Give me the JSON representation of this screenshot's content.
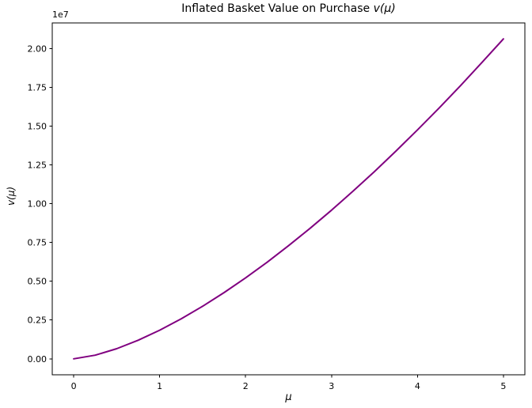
{
  "figure": {
    "title_prefix": "Inflated Basket Value on Purchase ",
    "title_math": "v(μ)",
    "xlabel": "μ",
    "ylabel": "v(μ)",
    "offset_text": "1e7",
    "background_color": "#ffffff",
    "spine_color": "#000000",
    "text_color": "#000000"
  },
  "chart_data": {
    "type": "line",
    "title": "Inflated Basket Value on Purchase v(μ)",
    "xlabel": "μ",
    "ylabel": "v(μ)",
    "grid": false,
    "legend": null,
    "line_color": "#800080",
    "line_width": 2,
    "xlim": [
      -0.25,
      5.25
    ],
    "ylim": [
      -1031400,
      21659400
    ],
    "y_offset_factor": "1e7",
    "xticks": {
      "values": [
        0,
        1,
        2,
        3,
        4,
        5
      ],
      "labels": [
        "0",
        "1",
        "2",
        "3",
        "4",
        "5"
      ]
    },
    "yticks": {
      "values": [
        0,
        2500000,
        5000000,
        7500000,
        10000000,
        12500000,
        15000000,
        17500000,
        20000000
      ],
      "labels": [
        "0.00",
        "0.25",
        "0.50",
        "0.75",
        "1.00",
        "1.25",
        "1.50",
        "1.75",
        "2.00"
      ]
    },
    "x": [
      0,
      0.25,
      0.5,
      0.75,
      1.0,
      1.25,
      1.5,
      1.75,
      2.0,
      2.25,
      2.5,
      2.75,
      3.0,
      3.25,
      3.5,
      3.75,
      4.0,
      4.25,
      4.5,
      4.75,
      5.0
    ],
    "y": [
      0,
      231000,
      652000,
      1198000,
      1845000,
      2578000,
      3390000,
      4271000,
      5218000,
      6227000,
      7293000,
      8414000,
      9587000,
      10808000,
      12074000,
      13398000,
      14760000,
      16165000,
      17612000,
      19103000,
      20628000
    ]
  }
}
